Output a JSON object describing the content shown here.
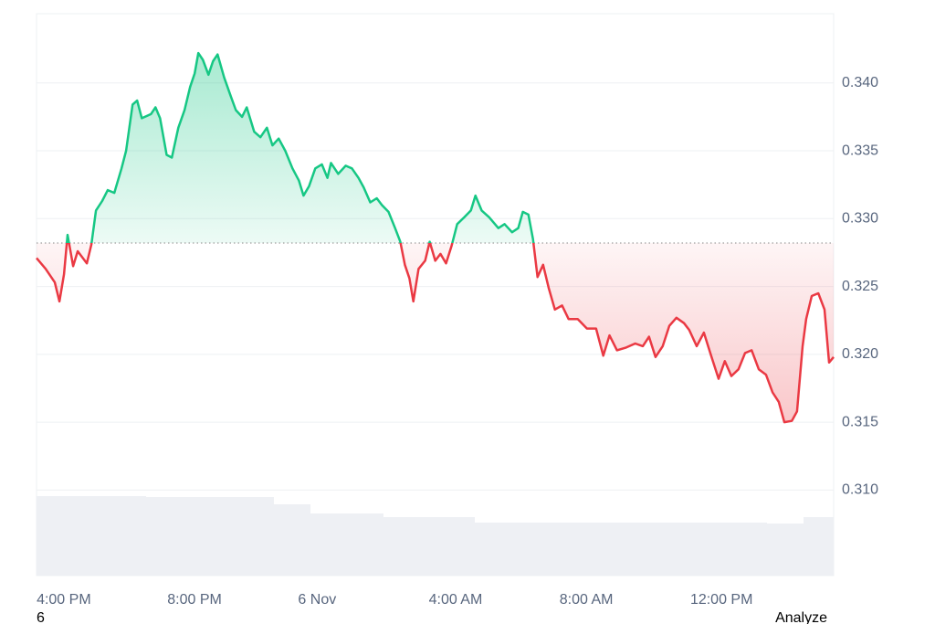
{
  "chart_data": {
    "type": "line",
    "x": [
      15.02,
      15.3,
      15.58,
      15.72,
      15.86,
      15.97,
      16.14,
      16.28,
      16.56,
      16.7,
      16.84,
      17.03,
      17.2,
      17.4,
      17.62,
      17.76,
      17.96,
      18.1,
      18.24,
      18.52,
      18.66,
      18.8,
      19.0,
      19.16,
      19.36,
      19.55,
      19.72,
      19.86,
      19.97,
      20.11,
      20.28,
      20.42,
      20.56,
      20.76,
      20.95,
      21.12,
      21.31,
      21.45,
      21.68,
      21.87,
      22.07,
      22.24,
      22.43,
      22.63,
      22.85,
      23.05,
      23.19,
      23.36,
      23.55,
      23.75,
      23.92,
      24.03,
      24.25,
      24.48,
      24.67,
      24.87,
      25.03,
      25.23,
      25.43,
      25.59,
      25.79,
      25.99,
      26.15,
      26.29,
      26.43,
      26.55,
      26.71,
      26.91,
      27.05,
      27.22,
      27.38,
      27.55,
      27.72,
      27.89,
      28.11,
      28.31,
      28.45,
      28.64,
      28.87,
      29.15,
      29.34,
      29.57,
      29.76,
      29.9,
      30.07,
      30.21,
      30.35,
      30.52,
      30.69,
      30.88,
      31.1,
      31.3,
      31.58,
      31.86,
      32.14,
      32.36,
      32.55,
      32.78,
      33.06,
      33.34,
      33.57,
      33.76,
      33.96,
      34.18,
      34.38,
      34.6,
      34.83,
      34.99,
      35.22,
      35.44,
      35.66,
      35.89,
      36.08,
      36.28,
      36.5,
      36.7,
      36.9,
      37.12,
      37.34,
      37.54,
      37.73,
      37.9,
      38.13,
      38.29,
      38.46,
      38.57,
      38.74,
      38.94,
      39.13,
      39.27,
      39.41
    ],
    "values": [
      0.3271,
      0.3263,
      0.3253,
      0.3239,
      0.3259,
      0.3288,
      0.3265,
      0.3276,
      0.3267,
      0.3281,
      0.3306,
      0.3313,
      0.3321,
      0.3319,
      0.3337,
      0.335,
      0.3384,
      0.3387,
      0.3374,
      0.3377,
      0.3382,
      0.3374,
      0.3347,
      0.3345,
      0.3367,
      0.338,
      0.3397,
      0.3407,
      0.3422,
      0.3417,
      0.3406,
      0.3416,
      0.3421,
      0.3404,
      0.3391,
      0.338,
      0.3375,
      0.3382,
      0.3364,
      0.336,
      0.3367,
      0.3354,
      0.3359,
      0.335,
      0.3337,
      0.3328,
      0.3317,
      0.3324,
      0.3337,
      0.334,
      0.333,
      0.3341,
      0.3333,
      0.3339,
      0.3337,
      0.333,
      0.3323,
      0.3312,
      0.3315,
      0.331,
      0.3305,
      0.3293,
      0.3283,
      0.3266,
      0.3256,
      0.3239,
      0.3263,
      0.3269,
      0.3283,
      0.3269,
      0.3274,
      0.3267,
      0.328,
      0.3296,
      0.3301,
      0.3306,
      0.3317,
      0.3306,
      0.3301,
      0.3293,
      0.3296,
      0.329,
      0.3293,
      0.3305,
      0.3303,
      0.3285,
      0.3257,
      0.3266,
      0.3249,
      0.3233,
      0.3236,
      0.3226,
      0.3226,
      0.3219,
      0.3219,
      0.3199,
      0.3214,
      0.3203,
      0.3205,
      0.3208,
      0.3206,
      0.3213,
      0.3198,
      0.3206,
      0.3221,
      0.3227,
      0.3223,
      0.3218,
      0.3206,
      0.3216,
      0.3199,
      0.3182,
      0.3195,
      0.3184,
      0.3189,
      0.3201,
      0.3203,
      0.3189,
      0.3185,
      0.3172,
      0.3165,
      0.315,
      0.3151,
      0.3158,
      0.3206,
      0.3226,
      0.3243,
      0.3245,
      0.3233,
      0.3194,
      0.3198
    ],
    "baseline": 0.3282,
    "up_color": "#16c784",
    "down_color": "#ea3943",
    "xlim": [
      15.02,
      39.41
    ],
    "xticks": [
      {
        "value": 16,
        "label": "4:00 PM"
      },
      {
        "value": 20,
        "label": "8:00 PM"
      },
      {
        "value": 24,
        "label": "6 Nov"
      },
      {
        "value": 28,
        "label": "4:00 AM"
      },
      {
        "value": 32,
        "label": "8:00 AM"
      },
      {
        "value": 36,
        "label": "12:00 PM"
      }
    ],
    "ylim": [
      0.3037,
      0.3451
    ],
    "yticks": [
      {
        "value": 0.31,
        "label": "0.310"
      },
      0.315,
      {
        "value": 0.32,
        "label": "0.320"
      },
      0.325,
      {
        "value": 0.33,
        "label": "0.330"
      },
      0.335,
      {
        "value": 0.34,
        "label": "0.340"
      }
    ],
    "grid": true
  },
  "footer": {
    "left": "6",
    "right": "Analyze"
  }
}
